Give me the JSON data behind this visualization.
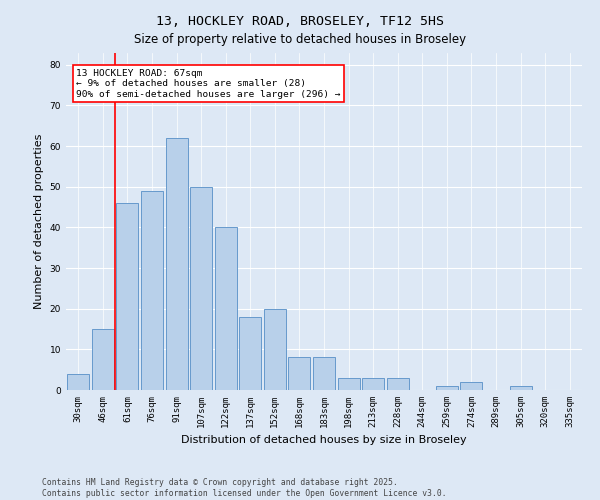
{
  "title": "13, HOCKLEY ROAD, BROSELEY, TF12 5HS",
  "subtitle": "Size of property relative to detached houses in Broseley",
  "xlabel": "Distribution of detached houses by size in Broseley",
  "ylabel": "Number of detached properties",
  "bar_labels": [
    "30sqm",
    "46sqm",
    "61sqm",
    "76sqm",
    "91sqm",
    "107sqm",
    "122sqm",
    "137sqm",
    "152sqm",
    "168sqm",
    "183sqm",
    "198sqm",
    "213sqm",
    "228sqm",
    "244sqm",
    "259sqm",
    "274sqm",
    "289sqm",
    "305sqm",
    "320sqm",
    "335sqm"
  ],
  "bar_values": [
    4,
    15,
    46,
    49,
    62,
    50,
    40,
    18,
    20,
    8,
    8,
    3,
    3,
    3,
    0,
    1,
    2,
    0,
    1,
    0,
    0
  ],
  "bar_color": "#b8d0ea",
  "bar_edgecolor": "#6699cc",
  "background_color": "#dde8f5",
  "plot_background": "#dde8f5",
  "grid_color": "#ffffff",
  "vline_x_index": 2,
  "vline_color": "red",
  "annotation_text": "13 HOCKLEY ROAD: 67sqm\n← 9% of detached houses are smaller (28)\n90% of semi-detached houses are larger (296) →",
  "annotation_box_facecolor": "white",
  "annotation_box_edgecolor": "red",
  "ylim": [
    0,
    83
  ],
  "yticks": [
    0,
    10,
    20,
    30,
    40,
    50,
    60,
    70,
    80
  ],
  "footer_text": "Contains HM Land Registry data © Crown copyright and database right 2025.\nContains public sector information licensed under the Open Government Licence v3.0.",
  "title_fontsize": 9.5,
  "subtitle_fontsize": 8.5,
  "xlabel_fontsize": 8,
  "ylabel_fontsize": 8,
  "tick_fontsize": 6.5,
  "annotation_fontsize": 6.8,
  "footer_fontsize": 5.8
}
